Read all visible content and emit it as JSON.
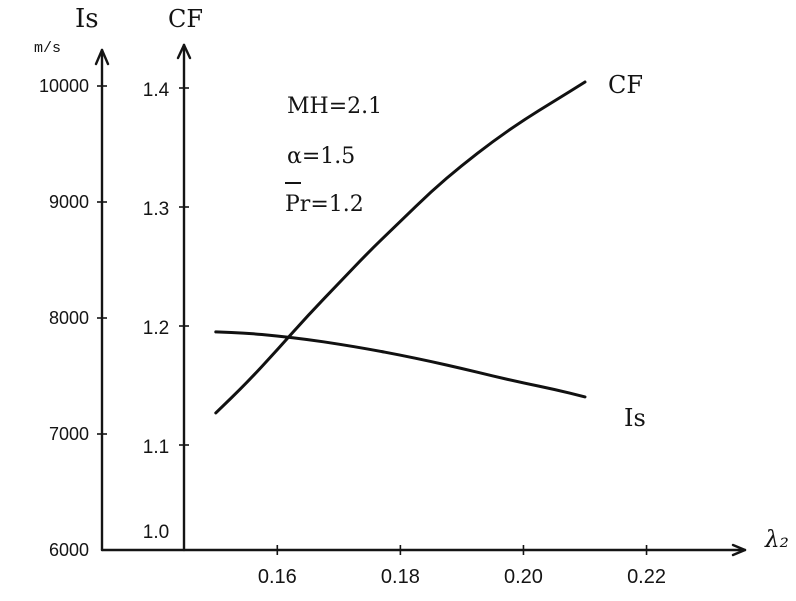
{
  "chart_data": {
    "type": "line",
    "x_axis": {
      "label": "λ₂",
      "range": [
        0.145,
        0.236
      ],
      "ticks": [
        0.16,
        0.18,
        0.2,
        0.22
      ],
      "tick_labels": [
        "0.16",
        "0.18",
        "0.20",
        "0.22"
      ]
    },
    "y_axes": [
      {
        "name": "Is",
        "label": "Is",
        "unit": "m/s",
        "range": [
          6000,
          10200
        ],
        "ticks": [
          6000,
          7000,
          8000,
          9000,
          10000
        ],
        "tick_labels": [
          "6000",
          "7000",
          "8000",
          "9000",
          "10000"
        ]
      },
      {
        "name": "CF",
        "label": "CF",
        "range": [
          0.95,
          1.41
        ],
        "ticks": [
          1.0,
          1.1,
          1.2,
          1.3,
          1.4
        ],
        "tick_labels": [
          "1.0",
          "1.1",
          "1.2",
          "1.3",
          "1.4"
        ]
      }
    ],
    "series": [
      {
        "name": "CF",
        "axis": "CF",
        "x": [
          0.15,
          0.155,
          0.16,
          0.165,
          0.17,
          0.175,
          0.18,
          0.185,
          0.19,
          0.195,
          0.2,
          0.205,
          0.21
        ],
        "y": [
          1.127,
          1.152,
          1.18,
          1.209,
          1.236,
          1.263,
          1.288,
          1.313,
          1.335,
          1.355,
          1.373,
          1.389,
          1.405
        ]
      },
      {
        "name": "Is",
        "axis": "Is",
        "x": [
          0.15,
          0.155,
          0.16,
          0.165,
          0.17,
          0.175,
          0.18,
          0.185,
          0.19,
          0.195,
          0.2,
          0.205,
          0.21
        ],
        "y": [
          7880,
          7870,
          7845,
          7815,
          7775,
          7730,
          7680,
          7625,
          7565,
          7500,
          7440,
          7385,
          7320
        ]
      }
    ],
    "annotations": [
      {
        "id": "MH",
        "text": "MH=2.1"
      },
      {
        "id": "alpha",
        "text": "α=1.5"
      },
      {
        "id": "Pr",
        "text": "Pr=1.2",
        "overline": true
      }
    ],
    "grid": false,
    "legend": "none"
  }
}
